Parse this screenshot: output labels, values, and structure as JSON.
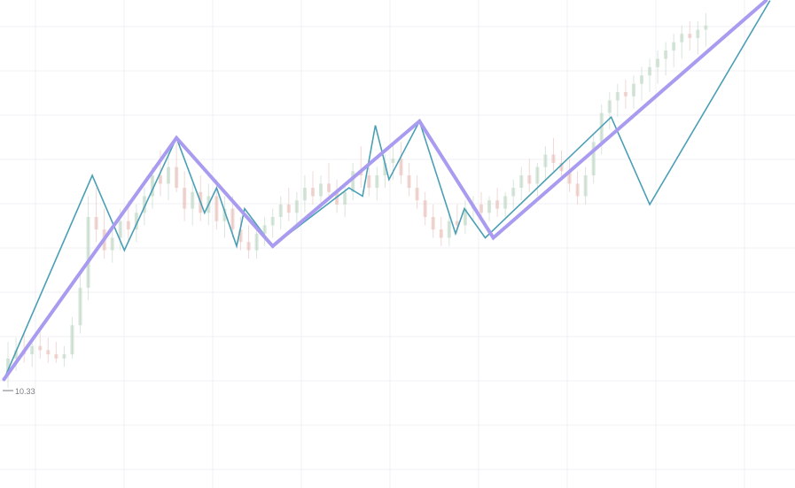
{
  "colors": {
    "minor_zigzag": "#4a9fb5",
    "major_zigzag": "#a99cf0",
    "candle_up": "#b9d3bf",
    "candle_down": "#e6b9b3",
    "grid": "#f1f1f4",
    "label": "#7a7a82"
  },
  "chart_data": {
    "type": "line",
    "title": "",
    "xlabel": "",
    "ylabel": "",
    "grid": true,
    "xlim": [
      0,
      100
    ],
    "ylim": [
      0,
      100
    ],
    "price_annotation": {
      "x": 1,
      "y": 10,
      "text": "10.33"
    },
    "series": [
      {
        "kind": "candles",
        "points": [
          [
            1,
            12,
            20,
            9,
            16
          ],
          [
            2,
            16,
            21,
            13,
            18
          ],
          [
            3,
            18,
            22,
            15,
            17
          ],
          [
            4,
            17,
            20,
            14,
            19
          ],
          [
            5,
            19,
            23,
            16,
            18
          ],
          [
            6,
            18,
            21,
            15,
            17
          ],
          [
            7,
            17,
            20,
            15,
            16
          ],
          [
            8,
            16,
            19,
            14,
            17
          ],
          [
            9,
            17,
            26,
            16,
            24
          ],
          [
            10,
            24,
            36,
            22,
            33
          ],
          [
            11,
            33,
            55,
            30,
            50
          ],
          [
            12,
            50,
            57,
            44,
            47
          ],
          [
            13,
            47,
            52,
            40,
            42
          ],
          [
            14,
            42,
            48,
            39,
            45
          ],
          [
            15,
            45,
            52,
            42,
            49
          ],
          [
            16,
            49,
            54,
            44,
            47
          ],
          [
            17,
            47,
            53,
            44,
            51
          ],
          [
            18,
            51,
            57,
            48,
            55
          ],
          [
            19,
            55,
            62,
            52,
            60
          ],
          [
            20,
            60,
            66,
            55,
            58
          ],
          [
            21,
            58,
            66,
            54,
            62
          ],
          [
            22,
            62,
            68,
            56,
            57
          ],
          [
            23,
            57,
            61,
            49,
            52
          ],
          [
            24,
            52,
            58,
            48,
            56
          ],
          [
            25,
            56,
            60,
            49,
            51
          ],
          [
            26,
            51,
            58,
            48,
            55
          ],
          [
            27,
            55,
            59,
            47,
            49
          ],
          [
            28,
            49,
            55,
            45,
            52
          ],
          [
            29,
            52,
            55,
            45,
            47
          ],
          [
            30,
            47,
            50,
            42,
            44
          ],
          [
            31,
            44,
            48,
            40,
            42
          ],
          [
            32,
            42,
            48,
            40,
            46
          ],
          [
            33,
            46,
            50,
            43,
            48
          ],
          [
            34,
            48,
            52,
            45,
            50
          ],
          [
            35,
            50,
            55,
            47,
            53
          ],
          [
            36,
            53,
            57,
            49,
            51
          ],
          [
            37,
            51,
            56,
            48,
            54
          ],
          [
            38,
            54,
            60,
            51,
            57
          ],
          [
            39,
            57,
            61,
            53,
            55
          ],
          [
            40,
            55,
            60,
            52,
            58
          ],
          [
            41,
            58,
            63,
            54,
            56
          ],
          [
            42,
            56,
            59,
            51,
            53
          ],
          [
            43,
            53,
            58,
            50,
            56
          ],
          [
            44,
            56,
            63,
            54,
            61
          ],
          [
            45,
            61,
            67,
            57,
            60
          ],
          [
            46,
            60,
            64,
            55,
            57
          ],
          [
            47,
            57,
            62,
            54,
            60
          ],
          [
            48,
            60,
            65,
            57,
            63
          ],
          [
            49,
            63,
            68,
            59,
            64
          ],
          [
            50,
            64,
            68,
            58,
            60
          ],
          [
            51,
            60,
            63,
            55,
            57
          ],
          [
            52,
            57,
            60,
            52,
            54
          ],
          [
            53,
            54,
            56,
            48,
            50
          ],
          [
            54,
            50,
            53,
            45,
            47
          ],
          [
            55,
            47,
            50,
            43,
            45
          ],
          [
            56,
            45,
            51,
            43,
            49
          ],
          [
            57,
            49,
            53,
            46,
            48
          ],
          [
            58,
            48,
            54,
            46,
            52
          ],
          [
            59,
            52,
            55,
            49,
            53
          ],
          [
            60,
            53,
            56,
            50,
            51
          ],
          [
            61,
            51,
            55,
            49,
            54
          ],
          [
            62,
            54,
            57,
            50,
            52
          ],
          [
            63,
            52,
            56,
            50,
            55
          ],
          [
            64,
            55,
            59,
            52,
            57
          ],
          [
            65,
            57,
            62,
            54,
            60
          ],
          [
            66,
            60,
            64,
            56,
            58
          ],
          [
            67,
            58,
            63,
            55,
            62
          ],
          [
            68,
            62,
            67,
            59,
            65
          ],
          [
            69,
            65,
            69,
            61,
            63
          ],
          [
            70,
            63,
            66,
            59,
            61
          ],
          [
            71,
            61,
            64,
            56,
            58
          ],
          [
            72,
            58,
            61,
            53,
            55
          ],
          [
            73,
            55,
            62,
            53,
            60
          ],
          [
            74,
            60,
            70,
            58,
            68
          ],
          [
            75,
            68,
            77,
            65,
            75
          ],
          [
            76,
            75,
            80,
            71,
            78
          ],
          [
            77,
            78,
            82,
            74,
            80
          ],
          [
            78,
            80,
            83,
            76,
            79
          ],
          [
            79,
            79,
            84,
            76,
            82
          ],
          [
            80,
            82,
            86,
            78,
            84
          ],
          [
            81,
            84,
            88,
            80,
            86
          ],
          [
            82,
            86,
            90,
            82,
            88
          ],
          [
            83,
            88,
            92,
            84,
            90
          ],
          [
            84,
            90,
            94,
            86,
            92
          ],
          [
            85,
            92,
            96,
            88,
            94
          ],
          [
            86,
            94,
            97,
            90,
            93
          ],
          [
            87,
            93,
            97,
            89,
            95
          ],
          [
            88,
            95,
            99,
            91,
            96
          ]
        ]
      },
      {
        "kind": "zigzag-minor",
        "x": [
          0.5,
          11.5,
          15.5,
          22,
          25.5,
          27,
          29.5,
          30.5,
          34,
          43.5,
          45.2,
          46.8,
          48.5,
          52.3,
          56.8,
          57.9,
          60.5,
          76.2,
          81,
          96
        ],
        "y": [
          11,
          60,
          42,
          69,
          51,
          57,
          43,
          52,
          43,
          57,
          55,
          72,
          59,
          73,
          46,
          52,
          45,
          74,
          53,
          102
        ]
      },
      {
        "kind": "zigzag-major",
        "x": [
          0.5,
          22,
          34,
          52.3,
          61.5,
          95.5
        ],
        "y": [
          11,
          69,
          43,
          73,
          45,
          102
        ]
      }
    ]
  },
  "labels": {
    "price": "10.33"
  }
}
